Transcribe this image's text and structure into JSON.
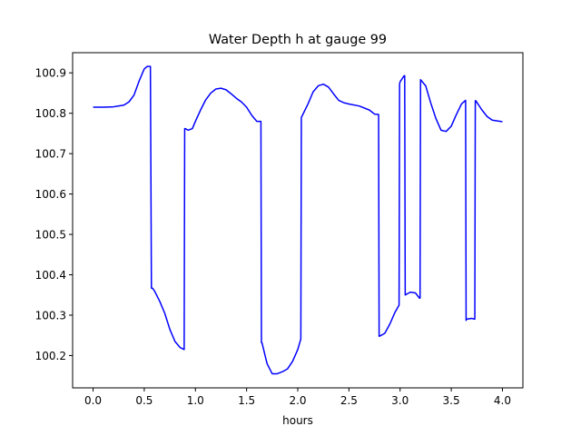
{
  "chart_data": {
    "type": "line",
    "title": "Water Depth h at gauge 99",
    "xlabel": "hours",
    "ylabel": "",
    "xlim": [
      -0.2,
      4.2
    ],
    "ylim": [
      100.12,
      100.95
    ],
    "xticks": [
      0.0,
      0.5,
      1.0,
      1.5,
      2.0,
      2.5,
      3.0,
      3.5,
      4.0
    ],
    "xtick_labels": [
      "0.0",
      "0.5",
      "1.0",
      "1.5",
      "2.0",
      "2.5",
      "3.0",
      "3.5",
      "4.0"
    ],
    "yticks": [
      100.2,
      100.3,
      100.4,
      100.5,
      100.6,
      100.7,
      100.8,
      100.9
    ],
    "ytick_labels": [
      "100.2",
      "100.3",
      "100.4",
      "100.5",
      "100.6",
      "100.7",
      "100.8",
      "100.9"
    ],
    "grid": false,
    "series": [
      {
        "color": "#0000ff",
        "x": [
          0.0,
          0.1,
          0.2,
          0.3,
          0.35,
          0.4,
          0.45,
          0.5,
          0.53,
          0.56,
          0.57,
          0.58,
          0.6,
          0.65,
          0.7,
          0.75,
          0.8,
          0.85,
          0.89,
          0.895,
          0.9,
          0.93,
          0.97,
          1.0,
          1.05,
          1.1,
          1.15,
          1.2,
          1.25,
          1.3,
          1.35,
          1.4,
          1.45,
          1.5,
          1.55,
          1.6,
          1.64,
          1.645,
          1.65,
          1.7,
          1.75,
          1.8,
          1.85,
          1.9,
          1.95,
          2.0,
          2.03,
          2.035,
          2.04,
          2.1,
          2.15,
          2.2,
          2.25,
          2.3,
          2.35,
          2.4,
          2.45,
          2.5,
          2.6,
          2.7,
          2.75,
          2.79,
          2.795,
          2.8,
          2.85,
          2.9,
          2.95,
          2.99,
          2.995,
          3.0,
          3.04,
          3.045,
          3.05,
          3.1,
          3.15,
          3.19,
          3.195,
          3.2,
          3.25,
          3.3,
          3.35,
          3.4,
          3.45,
          3.5,
          3.55,
          3.6,
          3.64,
          3.645,
          3.65,
          3.7,
          3.73,
          3.735,
          3.74,
          3.8,
          3.85,
          3.9,
          4.0
        ],
        "y": [
          100.815,
          100.815,
          100.816,
          100.82,
          100.828,
          100.845,
          100.88,
          100.91,
          100.916,
          100.916,
          100.367,
          100.367,
          100.36,
          100.335,
          100.305,
          100.265,
          100.235,
          100.22,
          100.215,
          100.762,
          100.762,
          100.758,
          100.762,
          100.78,
          100.808,
          100.833,
          100.85,
          100.86,
          100.862,
          100.858,
          100.848,
          100.837,
          100.828,
          100.815,
          100.795,
          100.78,
          100.78,
          100.232,
          100.232,
          100.18,
          100.155,
          100.155,
          100.16,
          100.167,
          100.186,
          100.215,
          100.241,
          100.79,
          100.792,
          100.823,
          100.853,
          100.868,
          100.872,
          100.865,
          100.848,
          100.832,
          100.826,
          100.823,
          100.818,
          100.808,
          100.798,
          100.797,
          100.248,
          100.248,
          100.255,
          100.278,
          100.307,
          100.325,
          100.872,
          100.878,
          100.893,
          100.893,
          100.35,
          100.357,
          100.355,
          100.342,
          100.342,
          100.883,
          100.868,
          100.825,
          100.787,
          100.758,
          100.755,
          100.768,
          100.797,
          100.823,
          100.832,
          100.287,
          100.29,
          100.292,
          100.29,
          100.831,
          100.831,
          100.808,
          100.792,
          100.783,
          100.779
        ]
      }
    ]
  }
}
